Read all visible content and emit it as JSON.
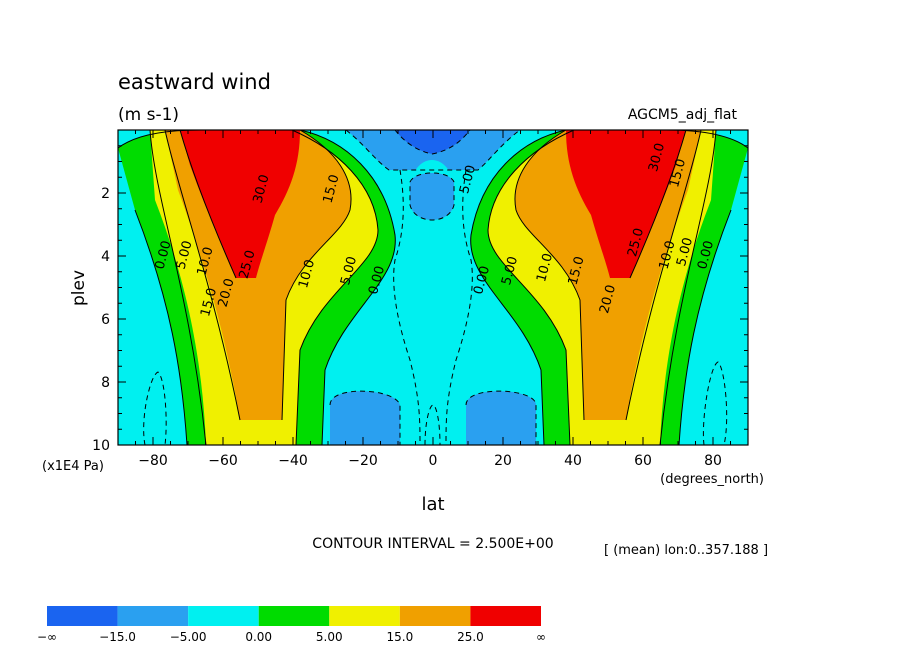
{
  "chart_data": {
    "type": "heatmap",
    "title": "eastward wind",
    "units": "(m s-1)",
    "model_label": "AGCM5_adj_flat",
    "xlabel": "lat",
    "x_unit": "(degrees_north)",
    "ylabel": "plev",
    "y_unit": "(x1E4 Pa)",
    "xlim": [
      -90,
      90
    ],
    "ylim": [
      10,
      0
    ],
    "x_ticks": [
      -80,
      -60,
      -40,
      -20,
      0,
      20,
      40,
      60,
      80
    ],
    "x_tick_labels": [
      "−80",
      "−60",
      "−40",
      "−20",
      "0",
      "20",
      "40",
      "60",
      "80"
    ],
    "y_ticks": [
      2,
      4,
      6,
      8,
      10
    ],
    "y_tick_labels": [
      "2",
      "4",
      "6",
      "8",
      "10"
    ],
    "contour_interval_text": "CONTOUR INTERVAL = 2.500E+00",
    "mean_text": "[ (mean) lon:0..357.188 ]",
    "contour_labels": [
      {
        "text": "30.0",
        "lat": -48,
        "plev": 1.9
      },
      {
        "text": "15.0",
        "lat": -28,
        "plev": 1.9
      },
      {
        "text": "25.0",
        "lat": -52,
        "plev": 4.3
      },
      {
        "text": "0.00",
        "lat": -76,
        "plev": 4.0
      },
      {
        "text": "5.00",
        "lat": -70,
        "plev": 4.0
      },
      {
        "text": "10.0",
        "lat": -64,
        "plev": 4.2
      },
      {
        "text": "20.0",
        "lat": -58,
        "plev": 5.2
      },
      {
        "text": "15.0",
        "lat": -63,
        "plev": 5.5
      },
      {
        "text": "10.0",
        "lat": -35,
        "plev": 4.6
      },
      {
        "text": "5.00",
        "lat": -23,
        "plev": 4.5
      },
      {
        "text": "0.00",
        "lat": -15,
        "plev": 4.8
      },
      {
        "text": "5.00",
        "lat": 11,
        "plev": 1.6
      },
      {
        "text": "0.00",
        "lat": 15,
        "plev": 4.8
      },
      {
        "text": "5.00",
        "lat": 23,
        "plev": 4.5
      },
      {
        "text": "10.0",
        "lat": 33,
        "plev": 4.4
      },
      {
        "text": "15.0",
        "lat": 42,
        "plev": 4.5
      },
      {
        "text": "20.0",
        "lat": 51,
        "plev": 5.4
      },
      {
        "text": "25.0",
        "lat": 59,
        "plev": 3.6
      },
      {
        "text": "30.0",
        "lat": 65,
        "plev": 0.9
      },
      {
        "text": "15.0",
        "lat": 71,
        "plev": 1.4
      },
      {
        "text": "10.0",
        "lat": 68,
        "plev": 4.0
      },
      {
        "text": "5.00",
        "lat": 73,
        "plev": 3.9
      },
      {
        "text": "0.00",
        "lat": 79,
        "plev": 4.0
      }
    ],
    "colorbar": {
      "colors": [
        "#1a64f0",
        "#2aa0f0",
        "#00f0f0",
        "#00dc00",
        "#f0f000",
        "#f0a000",
        "#f00000"
      ],
      "labels": [
        "−∞",
        "−15.0",
        "−5.00",
        "0.00",
        "5.00",
        "15.0",
        "25.0",
        "∞"
      ]
    }
  }
}
